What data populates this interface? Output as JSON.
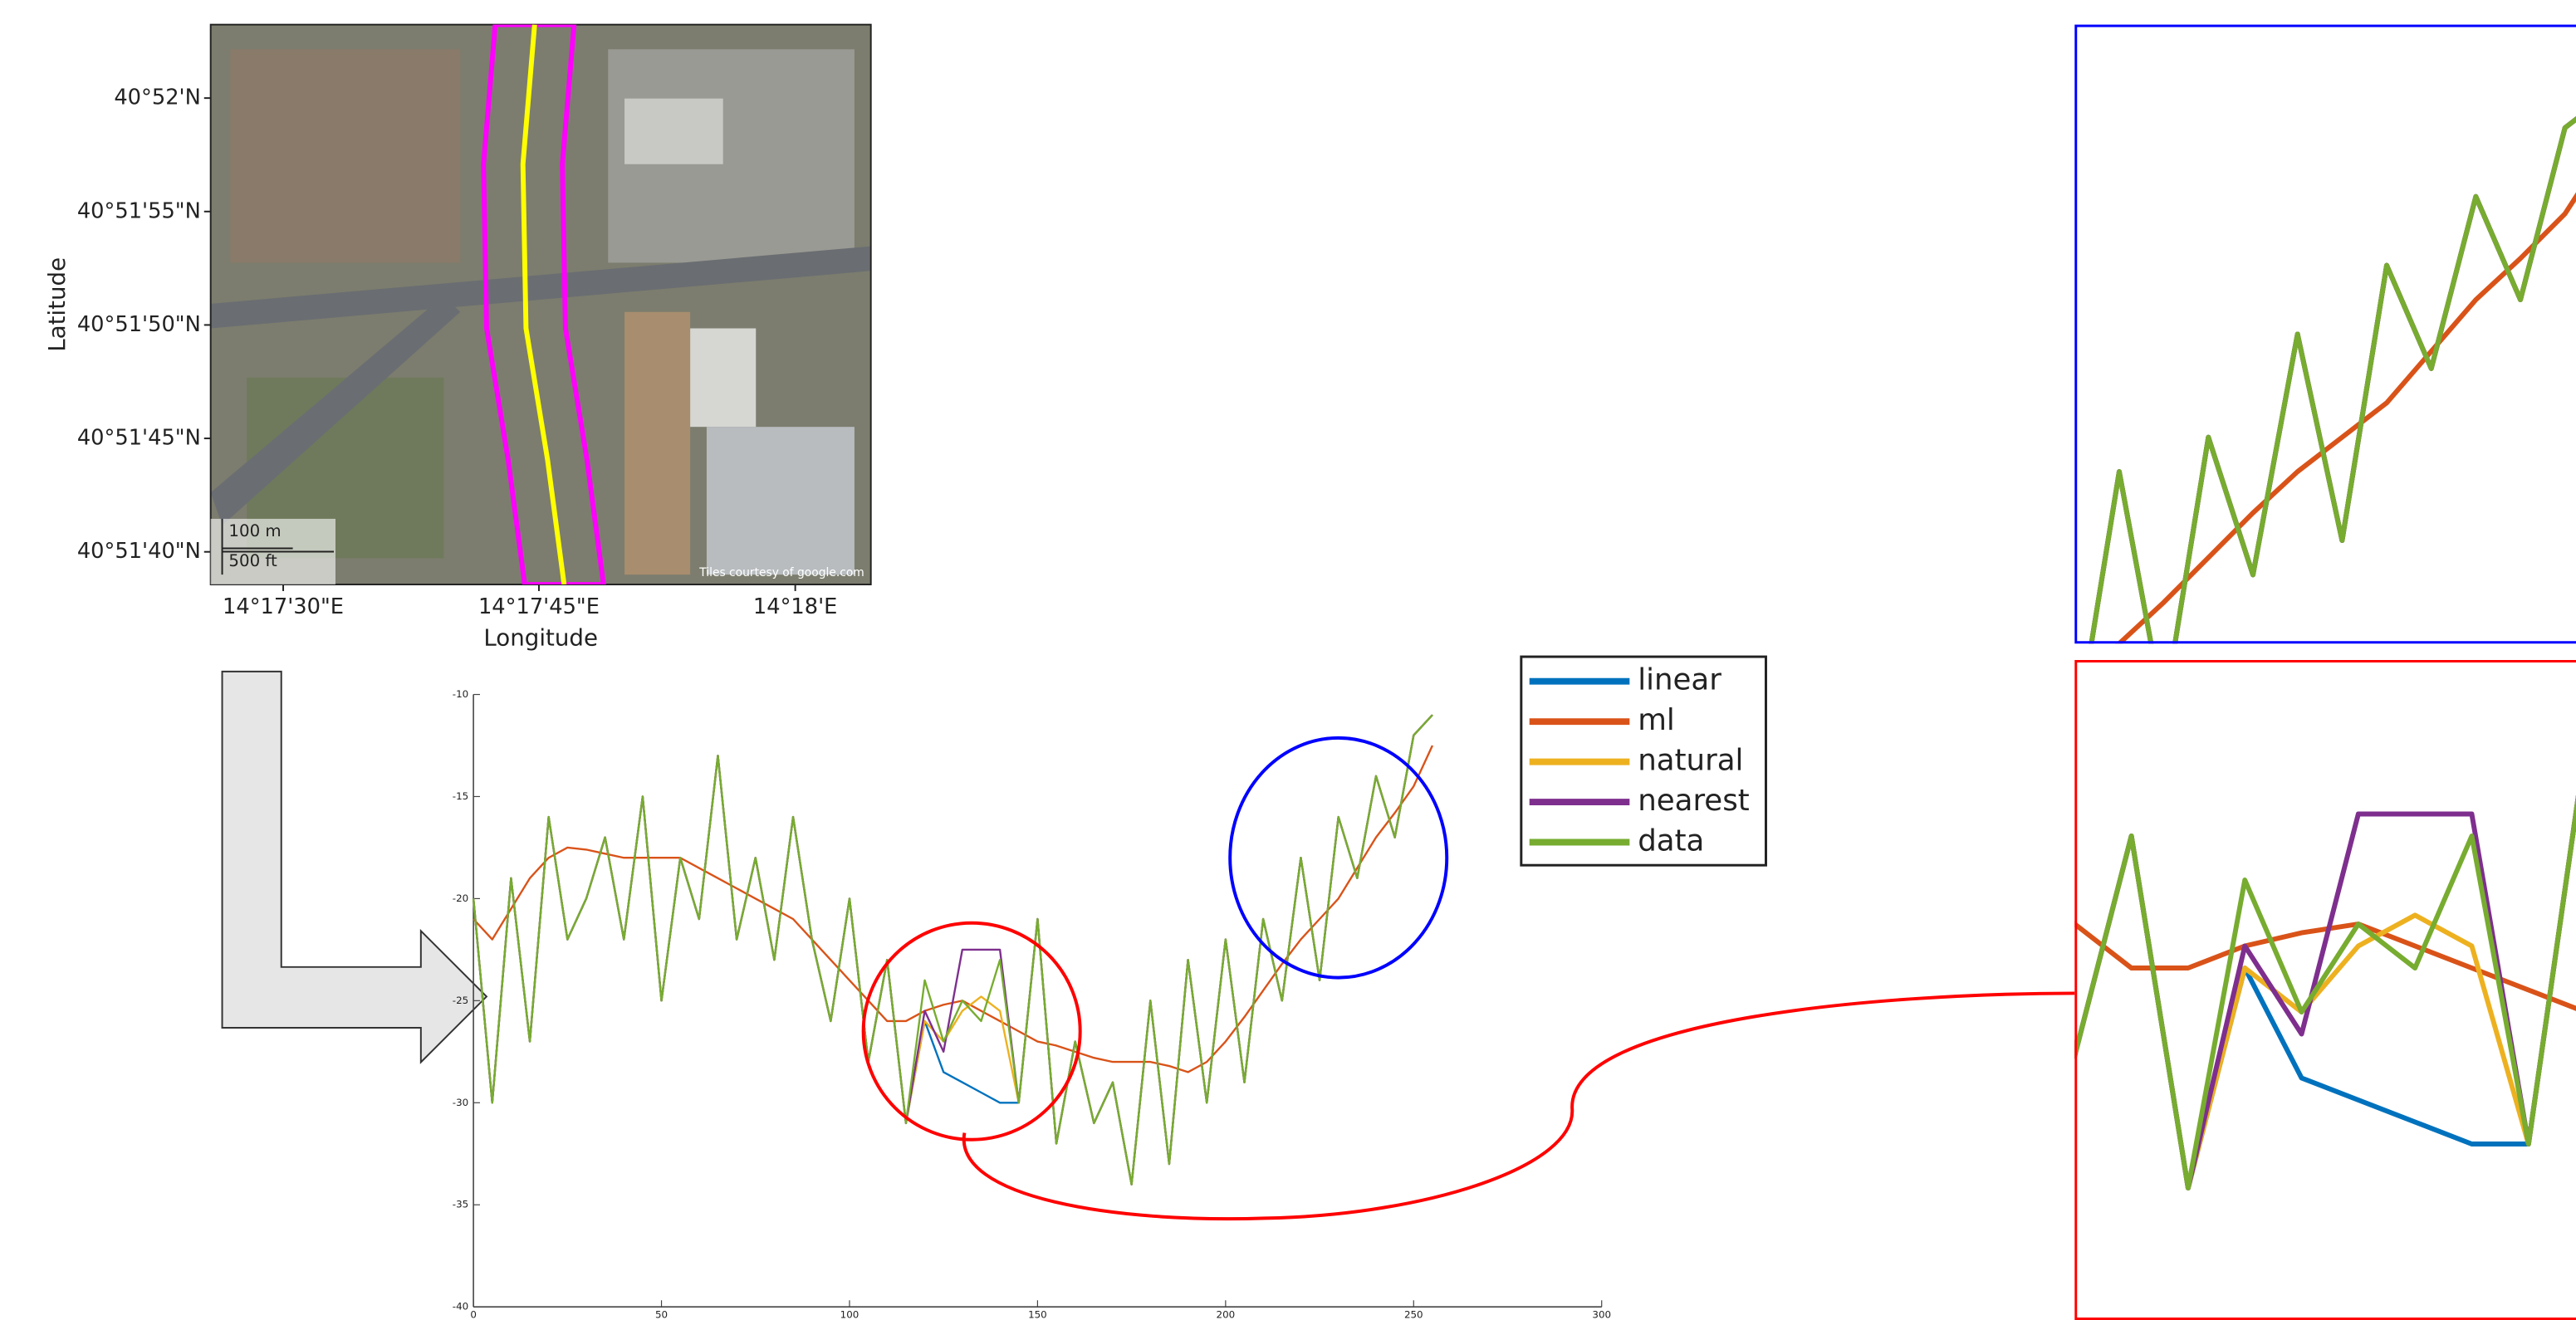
{
  "chart_data": [
    {
      "type": "map",
      "xlabel": "Longitude",
      "ylabel": "Latitude",
      "xlim": [
        14.29049,
        14.30123
      ],
      "ylim": [
        40.86071,
        40.86757
      ],
      "xticks": [
        {
          "value": 14.29167,
          "label": "14°17'30\"E"
        },
        {
          "value": 14.29583,
          "label": "14°17'45\"E"
        },
        {
          "value": 14.3,
          "label": "14°18'E"
        }
      ],
      "yticks": [
        {
          "value": 40.86111,
          "label": "40°51'40\"N"
        },
        {
          "value": 40.8625,
          "label": "40°51'45\"N"
        },
        {
          "value": 40.86389,
          "label": "40°51'50\"N"
        },
        {
          "value": 40.86528,
          "label": "40°51'55\"N"
        },
        {
          "value": 40.86667,
          "label": "40°52'N"
        }
      ],
      "track": {
        "lon": [
          14.29576,
          14.29557,
          14.29562,
          14.29597,
          14.29624
        ],
        "lat": [
          40.86757,
          40.86586,
          40.86385,
          40.86224,
          40.86071
        ],
        "color": "#ffff00"
      },
      "corridor_color": "#ff00ff",
      "scale_labels": [
        "100 m",
        "500 ft"
      ],
      "attribution": "Tiles courtesy of google.com"
    },
    {
      "type": "line",
      "x": [
        0,
        5,
        10,
        15,
        20,
        25,
        30,
        35,
        40,
        45,
        50,
        55,
        60,
        65,
        70,
        75,
        80,
        85,
        90,
        95,
        100,
        105,
        110,
        115,
        120,
        125,
        130,
        135,
        140,
        145,
        150,
        155,
        160,
        165,
        170,
        175,
        180,
        185,
        190,
        195,
        200,
        205,
        210,
        215,
        220,
        225,
        230,
        235,
        240,
        245,
        250,
        255
      ],
      "xlim": [
        0,
        300
      ],
      "ylim": [
        -40,
        -10
      ],
      "xticks": [
        0,
        50,
        100,
        150,
        200,
        250,
        300
      ],
      "yticks": [
        -10,
        -15,
        -20,
        -25,
        -30,
        -35,
        -40
      ],
      "series": [
        {
          "name": "linear",
          "color": "#0072BD",
          "values": [
            -20,
            -30,
            -19,
            -27,
            -16,
            -22,
            -20,
            -17,
            -22,
            -15,
            -25,
            -18,
            -21,
            -13,
            -22,
            -18,
            -23,
            -16,
            -22,
            -26,
            -20,
            -28,
            -23,
            -31,
            -26,
            -28.5,
            -29,
            -29.5,
            -30,
            -30,
            -21,
            -32,
            -27,
            -31,
            -29,
            -34,
            -25,
            -33,
            -23,
            -30,
            -22,
            -29,
            -21,
            -25,
            -18,
            -24,
            -16,
            -19,
            -14,
            -17,
            -12,
            -11
          ]
        },
        {
          "name": "ml",
          "color": "#D95319",
          "values": [
            -21,
            -22,
            -20.5,
            -19,
            -18,
            -17.5,
            -17.6,
            -17.8,
            -18,
            -18,
            -18,
            -18,
            -18.5,
            -19,
            -19.5,
            -20,
            -20.5,
            -21,
            -22,
            -23,
            -24,
            -25,
            -26,
            -26,
            -25.5,
            -25.2,
            -25,
            -25.5,
            -26,
            -26.5,
            -27,
            -27.2,
            -27.5,
            -27.8,
            -28,
            -28,
            -28,
            -28.2,
            -28.5,
            -28,
            -27,
            -25.8,
            -24.5,
            -23.2,
            -22,
            -21,
            -20,
            -18.5,
            -17,
            -15.8,
            -14.5,
            -12.5
          ]
        },
        {
          "name": "natural",
          "color": "#EDB120",
          "values": [
            -20,
            -30,
            -19,
            -27,
            -16,
            -22,
            -20,
            -17,
            -22,
            -15,
            -25,
            -18,
            -21,
            -13,
            -22,
            -18,
            -23,
            -16,
            -22,
            -26,
            -20,
            -28,
            -23,
            -31,
            -26,
            -27,
            -25.5,
            -24.8,
            -25.5,
            -30,
            -21,
            -32,
            -27,
            -31,
            -29,
            -34,
            -25,
            -33,
            -23,
            -30,
            -22,
            -29,
            -21,
            -25,
            -18,
            -24,
            -16,
            -19,
            -14,
            -17,
            -12,
            -11
          ]
        },
        {
          "name": "nearest",
          "color": "#7E2F8E",
          "values": [
            -20,
            -30,
            -19,
            -27,
            -16,
            -22,
            -20,
            -17,
            -22,
            -15,
            -25,
            -18,
            -21,
            -13,
            -22,
            -18,
            -23,
            -16,
            -22,
            -26,
            -20,
            -28,
            -23,
            -31,
            -25.5,
            -27.5,
            -22.5,
            -22.5,
            -22.5,
            -30,
            -21,
            -32,
            -27,
            -31,
            -29,
            -34,
            -25,
            -33,
            -23,
            -30,
            -22,
            -29,
            -21,
            -25,
            -18,
            -24,
            -16,
            -19,
            -14,
            -17,
            -12,
            -11
          ]
        },
        {
          "name": "data",
          "color": "#77AC30",
          "values": [
            -20,
            -30,
            -19,
            -27,
            -16,
            -22,
            -20,
            -17,
            -22,
            -15,
            -25,
            -18,
            -21,
            -13,
            -22,
            -18,
            -23,
            -16,
            -22,
            -26,
            -20,
            -28,
            -23,
            -31,
            -24,
            -27,
            -25,
            -26,
            -23,
            -30,
            -21,
            -32,
            -27,
            -31,
            -29,
            -34,
            -25,
            -33,
            -23,
            -30,
            -22,
            -29,
            -21,
            -25,
            -18,
            -24,
            -16,
            -19,
            -14,
            -17,
            -12,
            -11
          ]
        }
      ],
      "insets": [
        {
          "color": "#0000ff",
          "xlim": [
            195,
            265
          ],
          "ylim": [
            -27,
            -9
          ]
        },
        {
          "color": "#ff0000",
          "xlim": [
            105,
            160
          ],
          "ylim": [
            -34,
            -19
          ]
        }
      ]
    }
  ]
}
